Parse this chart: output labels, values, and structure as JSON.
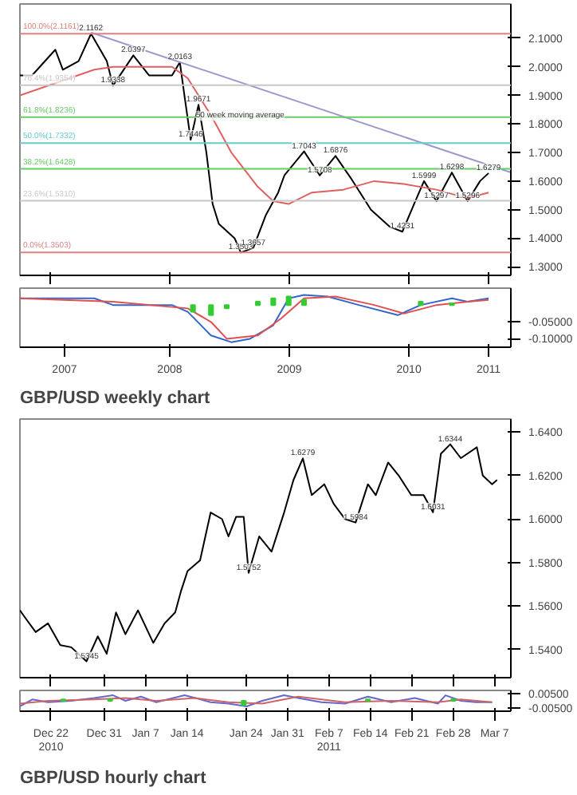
{
  "chart_data": [
    {
      "type": "line",
      "xlim": [
        "2007-04-01",
        "2011-05-08"
      ],
      "ylim": [
        1.27,
        2.22
      ],
      "tick_labels": "y",
      "xticks": [
        {
          "value": "2007-07-01",
          "label": null
        },
        {
          "value": "2008-07-01",
          "label": null
        },
        {
          "value": "2009-07-01",
          "label": null
        },
        {
          "value": "2010-07-01",
          "label": null
        },
        {
          "value": "2011-03-01",
          "label": null
        }
      ],
      "yticks": [
        {
          "value": 1.3,
          "label": "1.3000"
        },
        {
          "value": 1.4,
          "label": "1.4000"
        },
        {
          "value": 1.5,
          "label": "1.5000"
        },
        {
          "value": 1.6,
          "label": "1.6000"
        },
        {
          "value": 1.7,
          "label": "1.7000"
        },
        {
          "value": 1.8,
          "label": "1.8000"
        },
        {
          "value": 1.9,
          "label": "1.9000"
        },
        {
          "value": 2.0,
          "label": "2.0000"
        },
        {
          "value": 2.1,
          "label": "2.1000"
        }
      ],
      "series": [
        {
          "color": "#000000",
          "x": [
            "2007-04-01",
            "2007-05-08",
            "2007-07-18",
            "2007-08-10",
            "2007-09-27",
            "2007-11-04",
            "2007-12-22",
            "2008-01-10",
            "2008-03-12",
            "2008-04-29",
            "2008-07-08",
            "2008-08-01",
            "2008-08-15",
            "2008-09-03",
            "2008-09-27",
            "2008-10-21",
            "2008-11-09",
            "2008-11-28",
            "2009-01-15",
            "2009-02-03",
            "2009-03-13",
            "2009-04-20",
            "2009-05-28",
            "2009-06-16",
            "2009-08-15",
            "2009-10-02",
            "2009-11-19",
            "2010-01-05",
            "2010-03-07",
            "2010-05-04",
            "2010-06-11",
            "2010-07-28",
            "2010-08-16",
            "2010-09-23",
            "2010-11-09",
            "2010-12-27",
            "2011-02-03",
            "2011-03-01"
          ],
          "values": [
            1.97,
            1.97,
            2.06,
            1.99,
            2.02,
            2.116,
            2.02,
            1.934,
            2.04,
            1.97,
            1.97,
            2.016,
            1.9,
            1.745,
            1.867,
            1.7,
            1.52,
            1.45,
            1.4,
            1.35,
            1.366,
            1.48,
            1.56,
            1.62,
            1.704,
            1.62,
            1.688,
            1.61,
            1.5,
            1.44,
            1.423,
            1.55,
            1.6,
            1.53,
            1.63,
            1.53,
            1.6,
            1.628
          ]
        },
        {
          "color": "#e06060",
          "x": [
            "2007-04-01",
            "2007-11-14",
            "2008-01-10",
            "2008-07-08",
            "2008-08-25",
            "2008-11-04",
            "2009-01-05",
            "2009-03-27",
            "2009-05-13",
            "2009-06-29",
            "2009-09-08",
            "2009-12-13",
            "2010-03-17",
            "2010-06-16",
            "2010-09-23",
            "2010-12-27",
            "2011-03-01"
          ],
          "values": [
            1.9,
            1.99,
            2.0,
            2.0,
            1.96,
            1.83,
            1.7,
            1.58,
            1.53,
            1.52,
            1.56,
            1.57,
            1.6,
            1.59,
            1.57,
            1.54,
            1.56
          ]
        },
        {
          "color": "#9999cc",
          "x": [
            "2007-11-04",
            "2011-05-08"
          ],
          "values": [
            2.12,
            1.63
          ]
        }
      ],
      "ref_lines": [
        {
          "axis": "y",
          "value": 2.1161,
          "label": "100.0%(2.1161)",
          "color": "#e08080"
        },
        {
          "axis": "y",
          "value": 1.9354,
          "label": "76.4%(1.9354)",
          "color": "#c8c8c8"
        },
        {
          "axis": "y",
          "value": 1.8236,
          "label": "61.8%(1.8236)",
          "color": "#66cc66"
        },
        {
          "axis": "y",
          "value": 1.7332,
          "label": "50.0%(1.7332)",
          "color": "#66cccc"
        },
        {
          "axis": "y",
          "value": 1.6428,
          "label": "38.2%(1.6428)",
          "color": "#66cc66"
        },
        {
          "axis": "y",
          "value": 1.531,
          "label": "23.6%(1.5310)",
          "color": "#c8c8c8"
        },
        {
          "axis": "y",
          "value": 1.3503,
          "label": "0.0%(1.3503)",
          "color": "#e08080"
        }
      ],
      "annotations": [
        {
          "text": "50 week moving average",
          "x": "2009-02-01",
          "y": 1.8
        },
        {
          "text": "2.1162",
          "x": "2007-11-04",
          "y": 2.116
        },
        {
          "text": "1.9338",
          "x": "2008-01-10",
          "y": 1.934
        },
        {
          "text": "2.0397",
          "x": "2008-03-12",
          "y": 2.04
        },
        {
          "text": "2.0163",
          "x": "2008-08-01",
          "y": 2.016
        },
        {
          "text": "1.9671",
          "x": "2008-09-27",
          "y": 1.867
        },
        {
          "text": "1.7446",
          "x": "2008-09-03",
          "y": 1.745
        },
        {
          "text": "1.3503",
          "x": "2009-02-03",
          "y": 1.35
        },
        {
          "text": "1.3657",
          "x": "2009-03-13",
          "y": 1.366
        },
        {
          "text": "1.7043",
          "x": "2009-08-15",
          "y": 1.704
        },
        {
          "text": "1.6876",
          "x": "2009-11-19",
          "y": 1.688
        },
        {
          "text": "1.5708",
          "x": "2009-10-02",
          "y": 1.62
        },
        {
          "text": "1.4231",
          "x": "2010-06-11",
          "y": 1.423
        },
        {
          "text": "1.5999",
          "x": "2010-08-16",
          "y": 1.6
        },
        {
          "text": "1.5297",
          "x": "2010-09-23",
          "y": 1.53
        },
        {
          "text": "1.6298",
          "x": "2010-11-09",
          "y": 1.63
        },
        {
          "text": "1.5296",
          "x": "2010-12-27",
          "y": 1.53
        },
        {
          "text": "1.6279",
          "x": "2011-03-01",
          "y": 1.628
        }
      ]
    },
    {
      "type": "line",
      "title": "GBP/USD weekly chart",
      "xlim": [
        "2007-04-01",
        "2011-05-08"
      ],
      "ylim": [
        -0.125,
        0.05
      ],
      "xticks": [
        {
          "value": "2007-08-15",
          "label": "2007"
        },
        {
          "value": "2008-07-01",
          "label": "2008"
        },
        {
          "value": "2009-07-01",
          "label": "2009"
        },
        {
          "value": "2010-07-01",
          "label": "2010"
        },
        {
          "value": "2011-03-01",
          "label": "2011"
        }
      ],
      "yticks": [
        {
          "value": -0.05,
          "label": "-0.05000"
        },
        {
          "value": -0.1,
          "label": "-0.10000"
        }
      ],
      "series": [
        {
          "color": "#3366cc",
          "x": [
            "2007-04-01",
            "2007-11-14",
            "2008-01-10",
            "2008-07-08",
            "2008-08-25",
            "2008-11-04",
            "2009-01-05",
            "2009-03-03",
            "2009-05-13",
            "2009-06-29",
            "2009-08-15",
            "2009-10-26",
            "2010-01-29",
            "2010-05-28",
            "2010-08-06",
            "2010-11-09",
            "2010-12-27",
            "2011-03-01"
          ],
          "values": [
            0.02,
            0.02,
            0.0,
            0.0,
            -0.02,
            -0.09,
            -0.11,
            -0.1,
            -0.06,
            0.02,
            0.03,
            0.025,
            0.0,
            -0.03,
            0.0,
            0.02,
            0.01,
            0.02
          ]
        },
        {
          "color": "#e05050",
          "x": [
            "2007-04-01",
            "2008-01-10",
            "2008-08-25",
            "2008-11-04",
            "2008-12-22",
            "2009-03-27",
            "2009-06-06",
            "2009-08-15",
            "2009-11-19",
            "2010-03-17",
            "2010-06-16",
            "2010-09-23",
            "2010-12-27",
            "2011-03-01"
          ],
          "values": [
            0.02,
            0.01,
            -0.01,
            -0.05,
            -0.1,
            -0.09,
            -0.04,
            0.02,
            0.025,
            0.0,
            -0.025,
            0.0,
            0.01,
            0.015
          ]
        },
        {
          "type": "bar",
          "color": "#33cc33",
          "x": [
            "2008-09-10",
            "2008-11-04",
            "2008-12-22",
            "2009-03-27",
            "2009-05-13",
            "2009-06-29",
            "2009-08-15",
            "2010-08-06",
            "2010-11-09"
          ],
          "values": [
            -0.02,
            -0.03,
            -0.01,
            0.01,
            0.02,
            0.025,
            0.015,
            0.01,
            0.005
          ]
        }
      ]
    },
    {
      "type": "line",
      "xlim": [
        "2010-12-16T18:00",
        "2011-03-09T18:00"
      ],
      "ylim": [
        1.527,
        1.646
      ],
      "tick_labels": "y",
      "xticks": [
        {
          "value": "2010-12-22",
          "label": null
        },
        {
          "value": "2010-12-31",
          "label": null
        },
        {
          "value": "2011-01-07",
          "label": null
        },
        {
          "value": "2011-01-14",
          "label": null
        },
        {
          "value": "2011-01-24",
          "label": null
        },
        {
          "value": "2011-01-31",
          "label": null
        },
        {
          "value": "2011-02-07",
          "label": null
        },
        {
          "value": "2011-02-14",
          "label": null
        },
        {
          "value": "2011-02-21",
          "label": null
        },
        {
          "value": "2011-02-28",
          "label": null
        },
        {
          "value": "2011-03-07",
          "label": null
        }
      ],
      "yticks": [
        {
          "value": 1.54,
          "label": "1.5400"
        },
        {
          "value": 1.56,
          "label": "1.5600"
        },
        {
          "value": 1.58,
          "label": "1.5800"
        },
        {
          "value": 1.6,
          "label": "1.6000"
        },
        {
          "value": 1.62,
          "label": "1.6200"
        },
        {
          "value": 1.64,
          "label": "1.6400"
        }
      ],
      "series": [
        {
          "color": "#000000",
          "x": [
            "2010-12-16T18:00",
            "2010-12-17T19:00",
            "2010-12-19T10:00",
            "2010-12-21T12:00",
            "2010-12-23T14:00",
            "2010-12-25T10:00",
            "2010-12-28T00:00",
            "2010-12-29T22:00",
            "2010-12-31T10:00",
            "2011-01-02T00:00",
            "2011-01-03T14:00",
            "2011-01-05T17:00",
            "2011-01-08T07:00",
            "2011-01-10T05:00",
            "2011-01-12T00:00",
            "2011-01-13T00:00",
            "2011-01-14T02:00",
            "2011-01-16T05:00",
            "2011-01-18T00:00",
            "2011-01-19T22:00",
            "2011-01-21T00:00",
            "2011-01-22T07:00",
            "2011-01-23T14:00",
            "2011-01-24T10:00",
            "2011-01-26T05:00",
            "2011-01-28T07:00",
            "2011-01-30T10:00",
            "2011-02-01T00:00",
            "2011-02-02T14:00",
            "2011-02-04T02:00",
            "2011-02-06T05:00",
            "2011-02-07T19:00",
            "2011-02-09T17:00",
            "2011-02-11T12:00",
            "2011-02-13T14:00",
            "2011-02-14T22:00",
            "2011-02-17T00:00",
            "2011-02-18T19:00",
            "2011-02-20T22:00",
            "2011-02-23T00:00",
            "2011-02-24T14:00",
            "2011-02-25T22:00",
            "2011-02-27T12:00",
            "2011-03-01T07:00",
            "2011-03-04T00:00",
            "2011-03-05T00:00",
            "2011-03-06T14:00",
            "2011-03-07T10:00"
          ],
          "values": [
            1.558,
            1.554,
            1.548,
            1.552,
            1.542,
            1.541,
            1.5345,
            1.546,
            1.538,
            1.557,
            1.547,
            1.558,
            1.543,
            1.552,
            1.557,
            1.567,
            1.576,
            1.581,
            1.603,
            1.6,
            1.592,
            1.601,
            1.601,
            1.5752,
            1.592,
            1.585,
            1.603,
            1.618,
            1.6279,
            1.611,
            1.616,
            1.607,
            1.6,
            1.5984,
            1.616,
            1.611,
            1.626,
            1.62,
            1.611,
            1.611,
            1.6031,
            1.63,
            1.6344,
            1.628,
            1.633,
            1.62,
            1.616,
            1.618
          ]
        }
      ],
      "annotations": [
        {
          "text": "1.5345",
          "x": "2010-12-28T00:00",
          "y": 1.5345
        },
        {
          "text": "1.5752",
          "x": "2011-01-24T10:00",
          "y": 1.5752
        },
        {
          "text": "1.6279",
          "x": "2011-02-02T14:00",
          "y": 1.6279
        },
        {
          "text": "1.5984",
          "x": "2011-02-11T12:00",
          "y": 1.5984
        },
        {
          "text": "1.6031",
          "x": "2011-02-24T14:00",
          "y": 1.6031
        },
        {
          "text": "1.6344",
          "x": "2011-02-27T12:00",
          "y": 1.6344
        }
      ]
    },
    {
      "type": "line",
      "title": "GBP/USD hourly chart",
      "xlim": [
        "2010-12-16T18:00",
        "2011-03-09T18:00"
      ],
      "ylim": [
        -0.0075,
        0.0075
      ],
      "xticks": [
        {
          "value": "2010-12-22",
          "label": "Dec 22\n2010"
        },
        {
          "value": "2010-12-31",
          "label": "Dec 31"
        },
        {
          "value": "2011-01-07",
          "label": "Jan 7"
        },
        {
          "value": "2011-01-14",
          "label": "Jan 14"
        },
        {
          "value": "2011-01-24",
          "label": "Jan 24"
        },
        {
          "value": "2011-01-31",
          "label": "Jan 31"
        },
        {
          "value": "2011-02-07",
          "label": "Feb 7\n2011"
        },
        {
          "value": "2011-02-14",
          "label": "Feb 14"
        },
        {
          "value": "2011-02-21",
          "label": "Feb 21"
        },
        {
          "value": "2011-02-28",
          "label": "Feb 28"
        },
        {
          "value": "2011-03-07",
          "label": "Mar 7"
        }
      ],
      "yticks": [
        {
          "value": 0.005,
          "label": "0.00500"
        },
        {
          "value": -0.005,
          "label": "-0.00500"
        }
      ],
      "series": [
        {
          "color": "#6666cc",
          "x": [
            "2010-12-16T18:00",
            "2010-12-18T20:00",
            "2010-12-21T12:00",
            "2010-12-25T10:00",
            "2010-12-29T08:00",
            "2011-01-01T12:00",
            "2011-01-03T14:00",
            "2011-01-06T05:00",
            "2011-01-08T19:00",
            "2011-01-13T14:00",
            "2011-01-15T10:00",
            "2011-01-18T00:00",
            "2011-01-21T00:00",
            "2011-01-24T02:00",
            "2011-01-26T17:00",
            "2011-01-30T10:00",
            "2011-02-01T19:00",
            "2011-02-05T17:00",
            "2011-02-09T17:00",
            "2011-02-13T14:00",
            "2011-02-17T12:00",
            "2011-02-21T12:00",
            "2011-02-25T10:00",
            "2011-02-26T17:00",
            "2011-03-01T07:00",
            "2011-03-03T22:00",
            "2011-03-06T14:00"
          ],
          "values": [
            -0.004,
            0.001,
            -0.001,
            0.0,
            0.002,
            0.004,
            0.0,
            0.003,
            -0.001,
            0.004,
            0.002,
            -0.001,
            -0.002,
            -0.004,
            0.0,
            0.004,
            0.002,
            -0.001,
            -0.002,
            0.003,
            -0.001,
            0.002,
            -0.002,
            0.004,
            0.0,
            -0.001,
            -0.001
          ]
        },
        {
          "color": "#cc6666",
          "x": [
            "2010-12-16T18:00",
            "2010-12-21T12:00",
            "2010-12-29T08:00",
            "2011-01-03T14:00",
            "2011-01-08T19:00",
            "2011-01-15T10:00",
            "2011-01-21T00:00",
            "2011-01-26T17:00",
            "2011-02-01T19:00",
            "2011-02-09T17:00",
            "2011-02-17T12:00",
            "2011-02-25T10:00",
            "2011-03-01T07:00",
            "2011-03-06T14:00"
          ],
          "values": [
            -0.002,
            0.0,
            0.001,
            0.002,
            0.0,
            0.002,
            -0.001,
            -0.002,
            0.003,
            -0.001,
            0.0,
            -0.001,
            0.001,
            -0.001
          ]
        },
        {
          "type": "bar",
          "color": "#33cc33",
          "x": [
            "2010-12-24T02:00",
            "2011-01-01T00:00",
            "2011-01-23T14:00",
            "2011-02-13T14:00",
            "2011-02-28T00:00"
          ],
          "values": [
            0.001,
            0.001,
            -0.003,
            0.001,
            0.001
          ]
        }
      ]
    }
  ]
}
